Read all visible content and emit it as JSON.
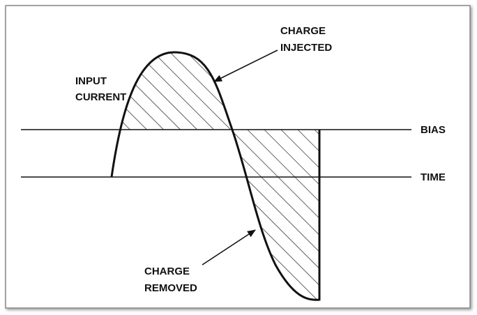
{
  "labels": {
    "input_current": [
      "INPUT",
      "CURRENT"
    ],
    "charge_injected": [
      "CHARGE",
      "INJECTED"
    ],
    "bias": "BIAS",
    "time": "TIME",
    "charge_removed": [
      "CHARGE",
      "REMOVED"
    ]
  }
}
